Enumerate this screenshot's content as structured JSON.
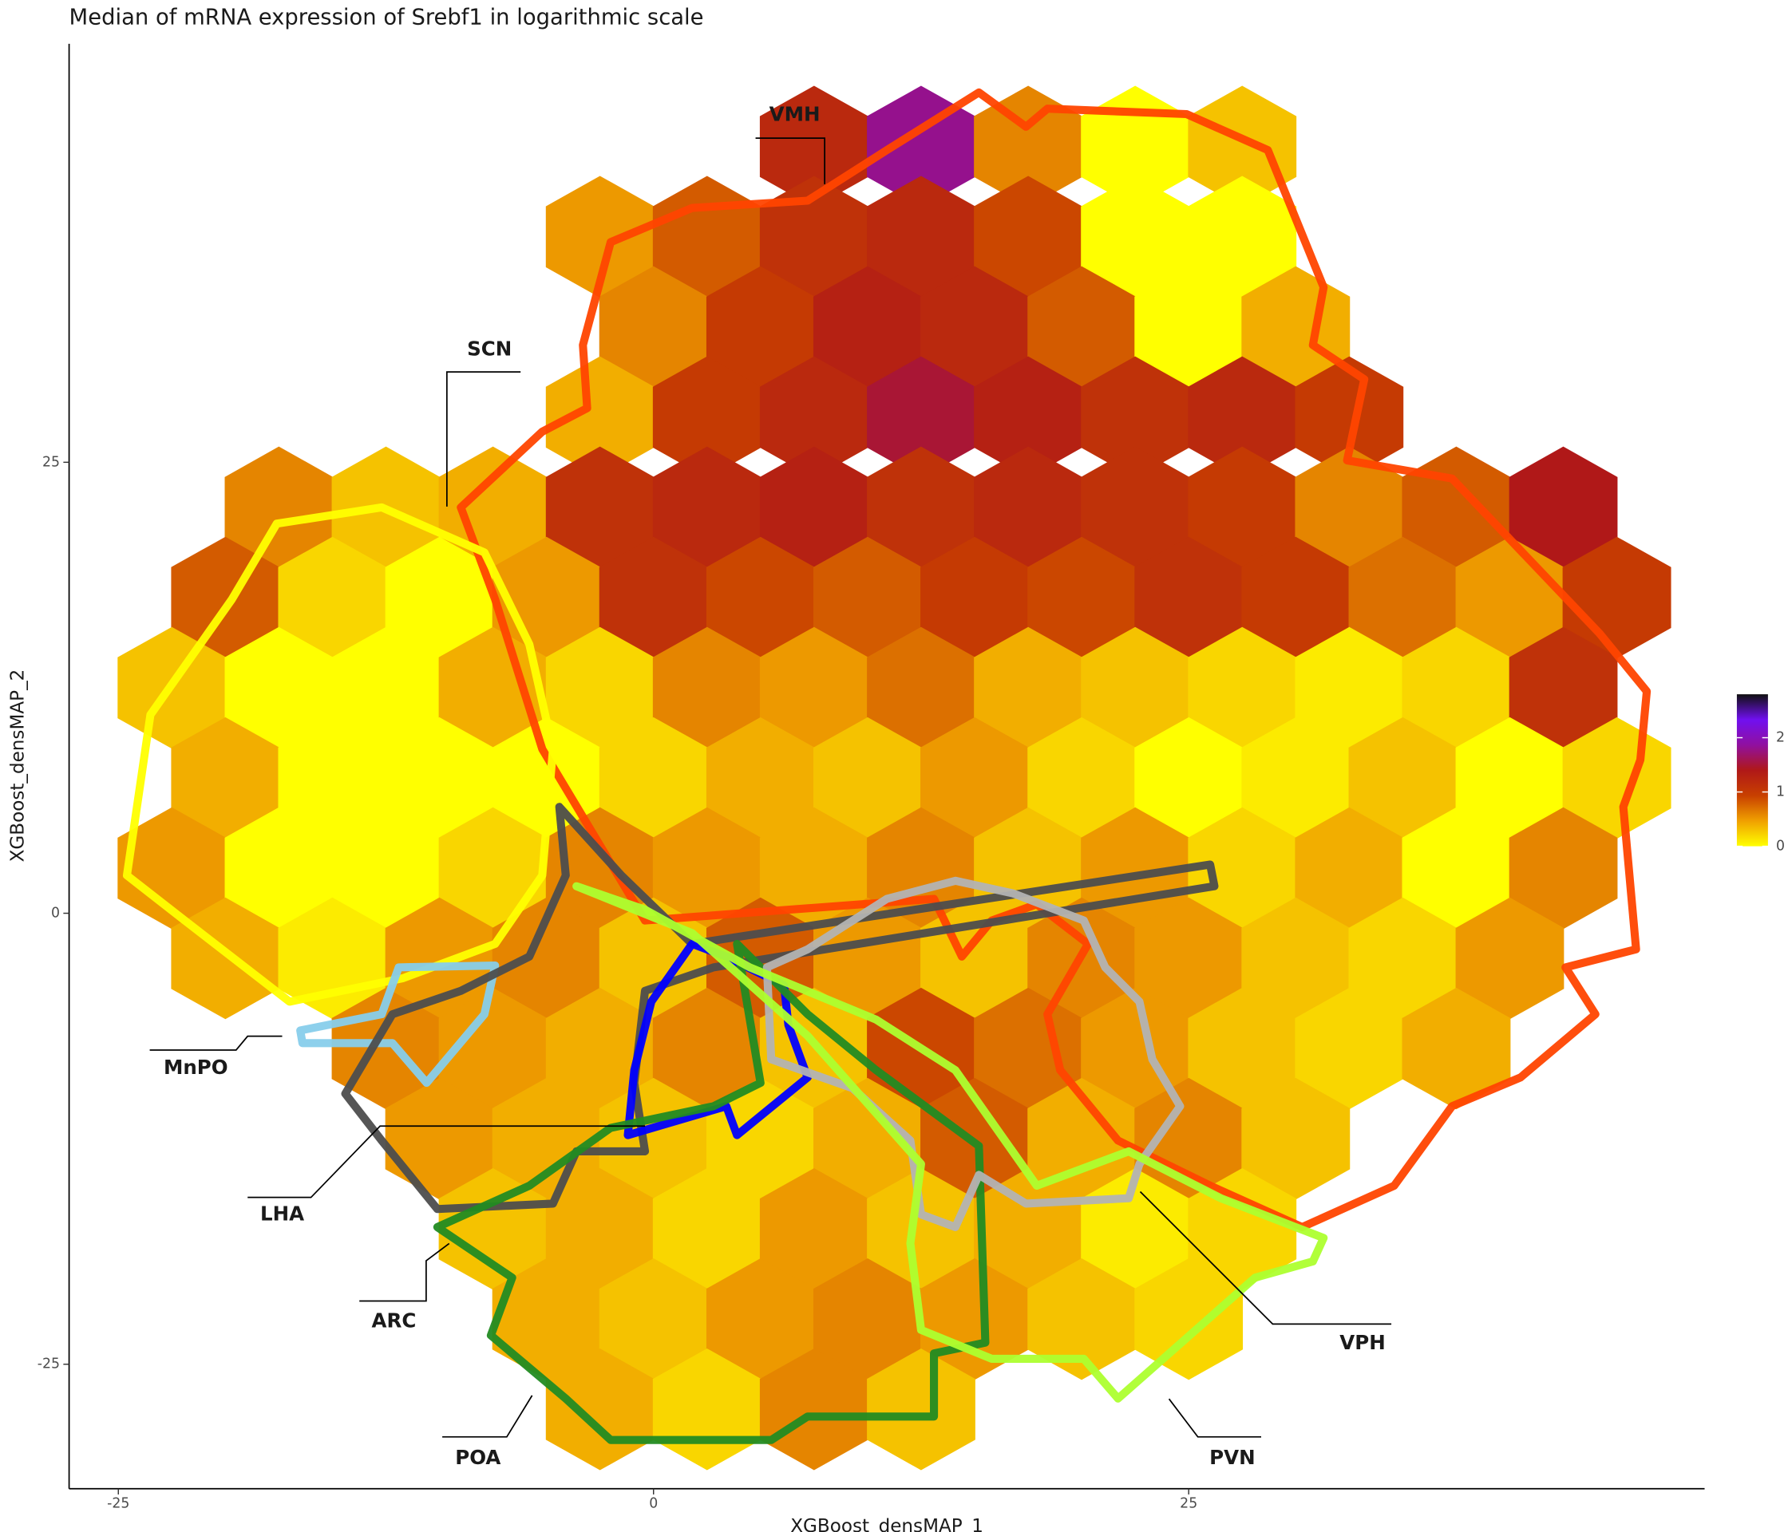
{
  "chart_data": {
    "type": "hexbin",
    "title": "Median of mRNA expression of Srebf1 in logarithmic scale",
    "x_label": "XGBoost_densMAP_1",
    "y_label": "XGBoost_densMAP_2",
    "xlim": [
      -27.3,
      49.1
    ],
    "ylim": [
      -31.9,
      48.2
    ],
    "xticks": [
      -25,
      0,
      25
    ],
    "yticks": [
      -25,
      0,
      25
    ],
    "colorbar": {
      "lim": [
        0,
        2.8
      ],
      "ticks": [
        0,
        1,
        2
      ],
      "colors": [
        "#ffff00",
        "#f0a000",
        "#c84000",
        "#b01818",
        "#9010a0",
        "#7010f0",
        "#101010"
      ]
    },
    "hexbins": [
      {
        "y": 42.5,
        "x": [
          7.5,
          12.5,
          17.5,
          22.5,
          27.5
        ],
        "values": [
          1.2,
          1.8,
          0.6,
          0,
          0.3
        ]
      },
      {
        "y": 37.5,
        "x": [
          -2.5,
          2.5,
          7.5,
          12.5,
          17.5,
          22.5,
          27.5
        ],
        "values": [
          0.5,
          0.8,
          1.1,
          1.2,
          0.9,
          0,
          0
        ]
      },
      {
        "y": 32.5,
        "x": [
          0,
          5,
          10,
          15,
          20,
          25,
          30
        ],
        "values": [
          0.6,
          1.0,
          1.3,
          1.2,
          0.8,
          0,
          0.4
        ]
      },
      {
        "y": 27.5,
        "x": [
          -2.5,
          2.5,
          7.5,
          12.5,
          17.5,
          22.5,
          27.5,
          32.5
        ],
        "values": [
          0.4,
          1.0,
          1.2,
          1.5,
          1.3,
          1.1,
          1.2,
          1.0
        ]
      },
      {
        "y": 22.5,
        "x": [
          -17.5,
          -12.5,
          -7.5,
          -2.5,
          2.5,
          7.5,
          12.5,
          17.5,
          22.5,
          27.5,
          32.5,
          37.5,
          42.5
        ],
        "values": [
          0.6,
          0.3,
          0.4,
          1.1,
          1.2,
          1.3,
          1.1,
          1.2,
          1.1,
          1.0,
          0.6,
          0.8,
          1.4
        ]
      },
      {
        "y": 17.5,
        "x": [
          -20,
          -15,
          -10,
          -5,
          0,
          5,
          10,
          15,
          20,
          25,
          30,
          35,
          40,
          45
        ],
        "values": [
          0.8,
          0.2,
          0,
          0.5,
          1.1,
          0.9,
          0.8,
          1.0,
          0.9,
          1.1,
          1.0,
          0.7,
          0.5,
          1.0
        ]
      },
      {
        "y": 12.5,
        "x": [
          -22.5,
          -17.5,
          -12.5,
          -7.5,
          -2.5,
          2.5,
          7.5,
          12.5,
          17.5,
          22.5,
          27.5,
          32.5,
          37.5,
          42.5
        ],
        "values": [
          0.3,
          0,
          0,
          0.4,
          0.2,
          0.6,
          0.5,
          0.7,
          0.4,
          0.3,
          0.2,
          0.1,
          0.2,
          1.1
        ]
      },
      {
        "y": 7.5,
        "x": [
          -20,
          -15,
          -10,
          -5,
          0,
          5,
          10,
          15,
          20,
          25,
          30,
          35,
          40,
          45
        ],
        "values": [
          0.4,
          0,
          0,
          0,
          0.2,
          0.4,
          0.3,
          0.5,
          0.2,
          0,
          0.1,
          0.3,
          0,
          0.2
        ]
      },
      {
        "y": 2.5,
        "x": [
          -22.5,
          -17.5,
          -12.5,
          -7.5,
          -2.5,
          2.5,
          7.5,
          12.5,
          17.5,
          22.5,
          27.5,
          32.5,
          37.5,
          42.5
        ],
        "values": [
          0.5,
          0,
          0,
          0.2,
          0.6,
          0.5,
          0.4,
          0.6,
          0.3,
          0.5,
          0.2,
          0.4,
          0,
          0.6
        ]
      },
      {
        "y": -2.5,
        "x": [
          -20,
          -15,
          -10,
          -5,
          0,
          5,
          10,
          15,
          20,
          25,
          30,
          35,
          40
        ],
        "values": [
          0.4,
          0.1,
          0.5,
          0.6,
          0.3,
          0.8,
          0.5,
          0.3,
          0.6,
          0.5,
          0.3,
          0.2,
          0.5
        ]
      },
      {
        "y": -7.5,
        "x": [
          -12.5,
          -7.5,
          -2.5,
          2.5,
          7.5,
          12.5,
          17.5,
          22.5,
          27.5,
          32.5,
          37.5
        ],
        "values": [
          0.6,
          0.5,
          0.4,
          0.6,
          0.3,
          0.9,
          0.7,
          0.5,
          0.3,
          0.2,
          0.4
        ]
      },
      {
        "y": -12.5,
        "x": [
          -10,
          -5,
          0,
          5,
          10,
          15,
          20,
          25,
          30
        ],
        "values": [
          0.5,
          0.4,
          0.3,
          0.2,
          0.4,
          0.8,
          0.4,
          0.6,
          0.3
        ]
      },
      {
        "y": -17.5,
        "x": [
          -7.5,
          -2.5,
          2.5,
          7.5,
          12.5,
          17.5,
          22.5,
          27.5
        ],
        "values": [
          0.3,
          0.4,
          0.2,
          0.5,
          0.3,
          0.4,
          0.1,
          0.2
        ]
      },
      {
        "y": -22.5,
        "x": [
          -5,
          0,
          5,
          10,
          15,
          20,
          25
        ],
        "values": [
          0.4,
          0.3,
          0.5,
          0.6,
          0.5,
          0.3,
          0.2
        ]
      },
      {
        "y": -27.5,
        "x": [
          -2.5,
          2.5,
          7.5,
          12.5
        ],
        "values": [
          0.4,
          0.2,
          0.6,
          0.3
        ]
      }
    ],
    "outlines": [
      {
        "name": "VMH",
        "color": "#ff4500",
        "x": [
          -9.0,
          -5.2,
          -3.1,
          -3.3,
          -2.0,
          1.8,
          7.2,
          10.9,
          15.2,
          17.4,
          18.4,
          24.9,
          28.7,
          31.3,
          30.8,
          33.2,
          32.4,
          37.3,
          44.2,
          46.4,
          46.1,
          45.3,
          45.9,
          42.6,
          44.0,
          40.5,
          37.3,
          34.6,
          30.3,
          26.0,
          21.7,
          19.0,
          18.4,
          20.3,
          17.9,
          15.8,
          14.4,
          13.1,
          -0.4,
          -5.2,
          -7.4
        ],
        "y": [
          22.5,
          26.7,
          28.0,
          31.5,
          37.2,
          39.1,
          39.5,
          42.3,
          45.5,
          43.6,
          44.6,
          44.3,
          42.3,
          34.7,
          31.5,
          29.6,
          25.1,
          24.1,
          15.5,
          12.3,
          8.5,
          5.9,
          -2.0,
          -3.0,
          -5.6,
          -9.1,
          -10.7,
          -15.1,
          -17.4,
          -15.1,
          -12.6,
          -8.7,
          -5.6,
          -1.7,
          0.5,
          -0.4,
          -2.4,
          0.8,
          -0.4,
          9.1,
          17.4
        ]
      },
      {
        "name": "SCN",
        "color": "#ffff00",
        "x": [
          -24.6,
          -23.5,
          -19.7,
          -17.6,
          -12.7,
          -7.9,
          -5.8,
          -4.7,
          -5.2,
          -7.4,
          -11.7,
          -17.0,
          -21.9
        ],
        "y": [
          2.1,
          11.0,
          17.4,
          21.6,
          22.5,
          20.0,
          14.9,
          9.1,
          2.1,
          -1.7,
          -3.6,
          -4.9,
          -0.4
        ]
      },
      {
        "name": "MnPO",
        "color": "#87ceeb",
        "x": [
          -16.5,
          -12.7,
          -11.9,
          -7.4,
          -7.9,
          -10.6,
          -12.2,
          -16.4
        ],
        "y": [
          -6.5,
          -5.6,
          -3.0,
          -2.9,
          -5.6,
          -9.4,
          -7.2,
          -7.2
        ]
      },
      {
        "name": "LHA",
        "color": "#4d4d4d",
        "x": [
          -14.4,
          -12.2,
          -9.0,
          -5.8,
          -4.1,
          -4.4,
          -1.5,
          1.8,
          26.0,
          26.2,
          2.8,
          -0.4,
          -0.9,
          -0.4,
          -3.6,
          -4.7,
          -10.1,
          -12.7
        ],
        "y": [
          -10.0,
          -5.6,
          -4.3,
          -2.4,
          2.1,
          5.9,
          2.1,
          -1.7,
          2.7,
          1.5,
          -3.0,
          -4.3,
          -9.4,
          -13.2,
          -13.2,
          -16.1,
          -16.4,
          -12.6
        ]
      },
      {
        "name": "ARC",
        "color": "#0000ff",
        "x": [
          -1.2,
          -0.9,
          -0.1,
          1.8,
          3.4,
          6.1,
          6.3,
          7.2,
          3.9,
          3.4
        ],
        "y": [
          -12.3,
          -8.7,
          -4.9,
          -1.7,
          -2.4,
          -4.0,
          -6.2,
          -9.1,
          -12.3,
          -10.7
        ]
      },
      {
        "name": "POA",
        "color": "#228b22",
        "x": [
          -10.1,
          -5.8,
          -2.0,
          2.8,
          5.0,
          3.9,
          7.2,
          10.4,
          15.2,
          15.5,
          13.1,
          13.1,
          7.2,
          5.5,
          -2.0,
          -4.1,
          -7.6,
          -6.6
        ],
        "y": [
          -17.4,
          -15.1,
          -11.9,
          -10.7,
          -9.4,
          -1.7,
          -5.6,
          -8.7,
          -12.9,
          -23.8,
          -24.4,
          -27.9,
          -27.9,
          -29.2,
          -29.2,
          -26.9,
          -23.4,
          -20.2
        ]
      },
      {
        "name": "VPH",
        "color": "#b3b3b3",
        "x": [
          5.5,
          5.3,
          7.2,
          10.9,
          14.1,
          16.8,
          20.1,
          21.1,
          22.7,
          23.3,
          24.6,
          22.7,
          22.2,
          17.4,
          15.2,
          14.1,
          12.5,
          12.0,
          9.3
        ],
        "y": [
          -8.1,
          -3.0,
          -2.0,
          0.8,
          1.8,
          1.1,
          -0.4,
          -3.0,
          -4.9,
          -8.1,
          -10.7,
          -13.9,
          -15.8,
          -16.1,
          -14.5,
          -17.4,
          -16.7,
          -12.6,
          -9.7
        ]
      },
      {
        "name": "PVN",
        "color": "#adff2f",
        "x": [
          -3.6,
          -0.4,
          4.5,
          10.4,
          14.1,
          17.9,
          22.2,
          26.5,
          31.3,
          30.8,
          28.1,
          23.8,
          21.7,
          20.1,
          15.8,
          12.5,
          12.0,
          12.5,
          7.2,
          1.8
        ],
        "y": [
          1.5,
          0.2,
          -3.0,
          -5.9,
          -8.7,
          -15.1,
          -13.2,
          -15.8,
          -18.0,
          -19.3,
          -20.2,
          -24.7,
          -26.9,
          -24.7,
          -24.7,
          -23.1,
          -18.3,
          -13.9,
          -6.8,
          -1.1
        ]
      }
    ]
  }
}
